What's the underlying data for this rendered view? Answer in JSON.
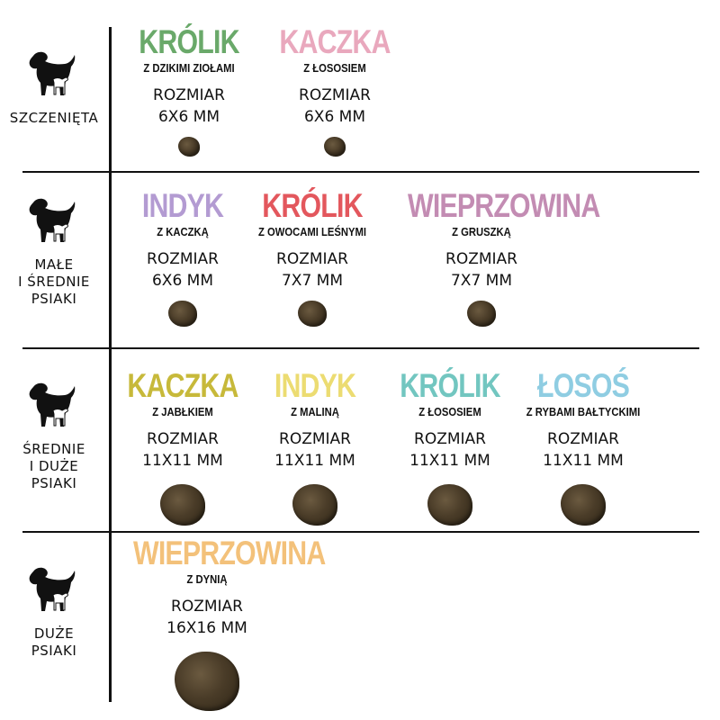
{
  "colors": {
    "line": "#111111",
    "kibble": "#4a3c28"
  },
  "rows": [
    {
      "icon": "dog-and-puppy-icon",
      "label": [
        "SZCZENIĘTA"
      ],
      "items": [
        {
          "title": "KRÓLIK",
          "color": "#6aa96a",
          "subtitle": "Z DZIKIMI ZIOŁAMI",
          "size_label": "ROZMIAR",
          "size": "6X6 MM"
        },
        {
          "title": "KACZKA",
          "color": "#e9a8bd",
          "subtitle": "Z ŁOSOSIEM",
          "size_label": "ROZMIAR",
          "size": "6X6 MM"
        }
      ]
    },
    {
      "icon": "dog-and-puppy-icon",
      "label": [
        "MAŁE",
        "I ŚREDNIE",
        "PSIAKI"
      ],
      "items": [
        {
          "title": "INDYK",
          "color": "#b39bd2",
          "subtitle": "Z KACZKĄ",
          "size_label": "ROZMIAR",
          "size": "6X6 MM"
        },
        {
          "title": "KRÓLIK",
          "color": "#e3575d",
          "subtitle": "Z OWOCAMI LEŚNYMI",
          "size_label": "ROZMIAR",
          "size": "7X7 MM"
        },
        {
          "title": "WIEPRZOWINA",
          "color": "#c38cb3",
          "subtitle": "Z GRUSZKĄ",
          "size_label": "ROZMIAR",
          "size": "7X7 MM"
        }
      ]
    },
    {
      "icon": "dog-and-puppy-icon",
      "label": [
        "ŚREDNIE",
        "I DUŻE",
        "PSIAKI"
      ],
      "items": [
        {
          "title": "KACZKA",
          "color": "#c7b93a",
          "subtitle": "Z JABŁKIEM",
          "size_label": "ROZMIAR",
          "size": "11X11 MM"
        },
        {
          "title": "INDYK",
          "color": "#ecdc72",
          "subtitle": "Z MALINĄ",
          "size_label": "ROZMIAR",
          "size": "11X11 MM"
        },
        {
          "title": "KRÓLIK",
          "color": "#72c6c0",
          "subtitle": "Z ŁOSOSIEM",
          "size_label": "ROZMIAR",
          "size": "11X11 MM"
        },
        {
          "title": "ŁOSOŚ",
          "color": "#8fcde2",
          "subtitle": "Z RYBAMI BAŁTYCKIMI",
          "size_label": "ROZMIAR",
          "size": "11X11 MM"
        }
      ]
    },
    {
      "icon": "dog-and-puppy-icon",
      "label": [
        "DUŻE",
        "PSIAKI"
      ],
      "items": [
        {
          "title": "WIEPRZOWINA",
          "color": "#f3c17a",
          "subtitle": "Z DYNIĄ",
          "size_label": "ROZMIAR",
          "size": "16X16 MM"
        }
      ]
    }
  ]
}
